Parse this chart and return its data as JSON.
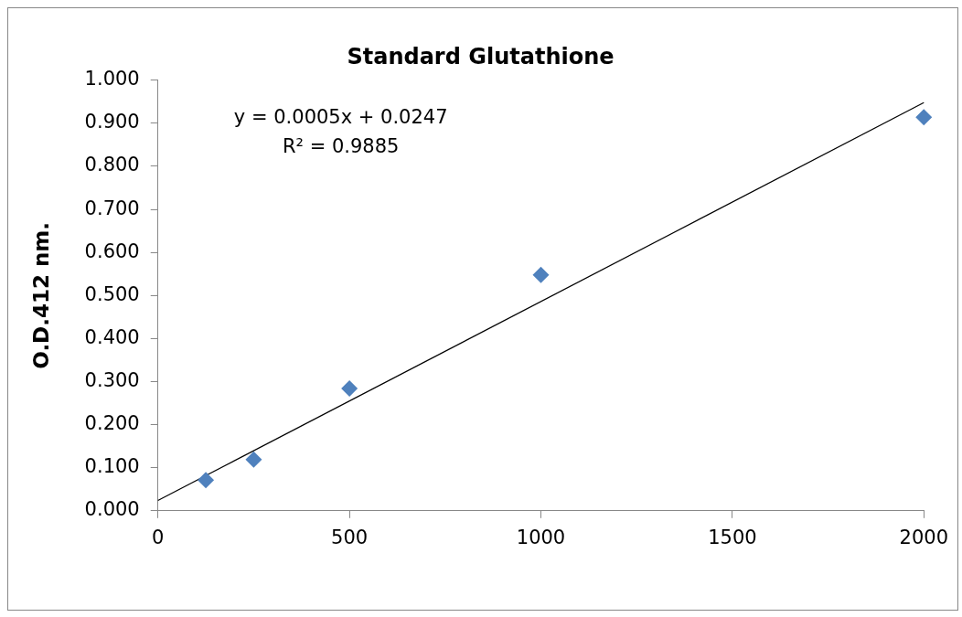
{
  "chart_data": {
    "type": "scatter",
    "title": "Standard Glutathione",
    "ylabel": "O.D.412 nm.",
    "x": [
      125,
      250,
      500,
      1000,
      2000
    ],
    "series": [
      {
        "type": "scatter",
        "color": "#4f81bd",
        "values": [
          0.071,
          0.119,
          0.284,
          0.548,
          0.914
        ],
        "marker": "diamond"
      },
      {
        "type": "line",
        "color": "#000000",
        "x": [
          0,
          2000
        ],
        "values": [
          0.024,
          0.948
        ],
        "marker": "none",
        "line_style": "solid"
      }
    ],
    "xlim": [
      0,
      2000
    ],
    "xticks": [
      0,
      500,
      1000,
      1500,
      2000
    ],
    "ylim": [
      0,
      1
    ],
    "yticks": [
      {
        "value": 0,
        "label": "0.000"
      },
      {
        "value": 0.1,
        "label": "0.100"
      },
      {
        "value": 0.2,
        "label": "0.200"
      },
      {
        "value": 0.3,
        "label": "0.300"
      },
      {
        "value": 0.4,
        "label": "0.400"
      },
      {
        "value": 0.5,
        "label": "0.500"
      },
      {
        "value": 0.6,
        "label": "0.600"
      },
      {
        "value": 0.7,
        "label": "0.700"
      },
      {
        "value": 0.8,
        "label": "0.800"
      },
      {
        "value": 0.9,
        "label": "0.900"
      },
      {
        "value": 1,
        "label": "1.000"
      }
    ],
    "grid": false,
    "legend": false,
    "annotations": [
      "y = 0.0005x + 0.0247",
      "R² = 0.9885"
    ]
  }
}
